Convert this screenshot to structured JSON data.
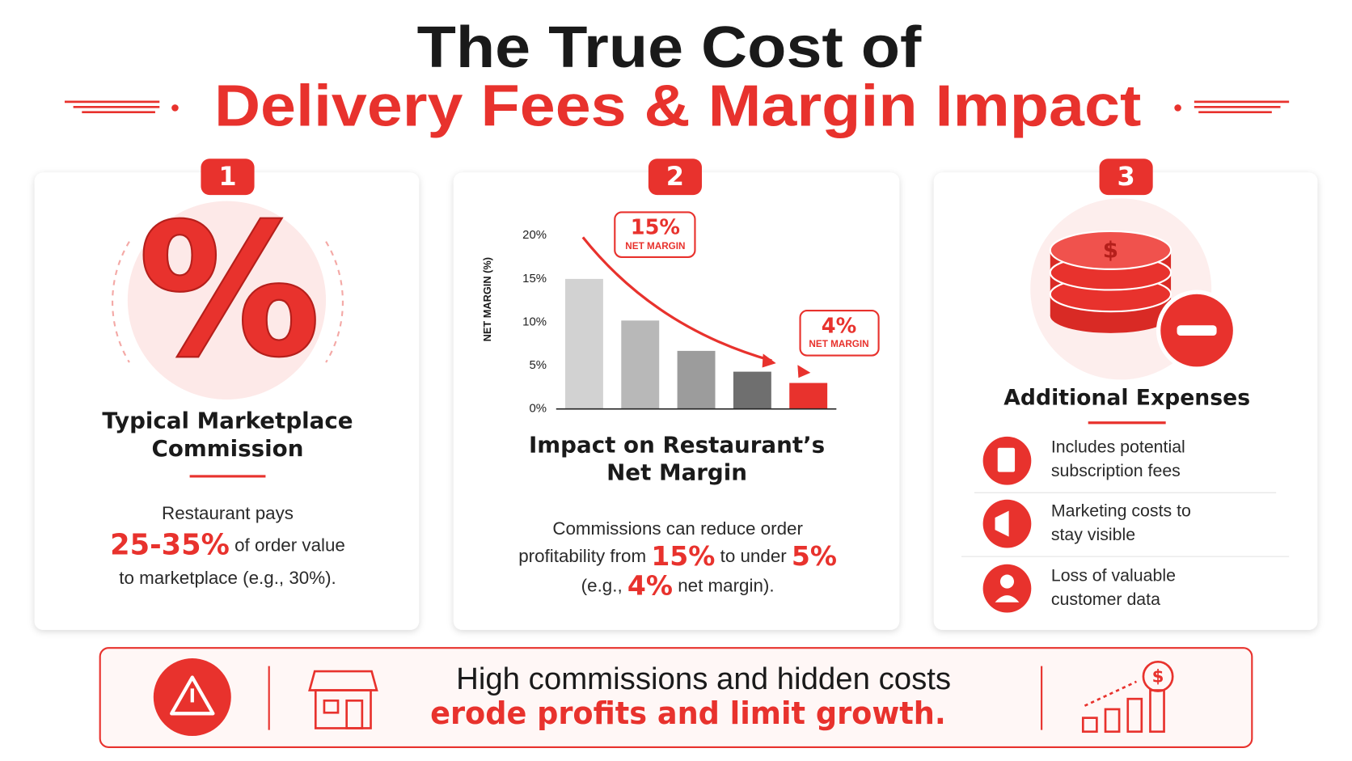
{
  "header": {
    "title_line1": "The True Cost of",
    "title_line2": "Delivery Fees & Margin Impact"
  },
  "cards": [
    {
      "number": "1",
      "icon": "%",
      "title_lines": [
        "Typical Marketplace",
        "Commission"
      ],
      "body": [
        "Restaurant pays",
        "25-35%",
        "of order value",
        "to marketplace (e.g., 30%)."
      ]
    },
    {
      "number": "2",
      "title_lines": [
        "Impact on Restaurant’s",
        "Net Margin"
      ],
      "body": [
        "Commissions can reduce order",
        "profitability from",
        "15%",
        "to under",
        "5%",
        "(e.g.,",
        "4%",
        "net margin)."
      ]
    },
    {
      "number": "3",
      "icon": "$",
      "title": "Additional Expenses",
      "items": [
        [
          "Includes potential",
          "subscription fees"
        ],
        [
          "Marketing costs to",
          "stay visible"
        ],
        [
          "Loss of valuable",
          "customer data"
        ]
      ]
    }
  ],
  "chart_data": {
    "type": "bar",
    "y_label": "NET MARGIN (%)",
    "categories": [
      null,
      null,
      null,
      null,
      null
    ],
    "values": [
      15,
      10.2,
      6.7,
      4.3,
      3
    ],
    "colors": [
      "#d2d2d2",
      "#b8b8b8",
      "#9c9c9c",
      "#6f6f6f",
      "#e8322d"
    ],
    "ylim": [
      0,
      20
    ],
    "yticks": [
      {
        "value": 0,
        "label": "0%"
      },
      {
        "value": 5,
        "label": "5%"
      },
      {
        "value": 10,
        "label": "10%"
      },
      {
        "value": 15,
        "label": "15%"
      },
      {
        "value": 20,
        "label": "20%"
      }
    ],
    "annotations": [
      {
        "text": "15%",
        "label": "NET MARGIN"
      },
      {
        "text": "4%",
        "label": "NET MARGIN"
      }
    ]
  },
  "footer": {
    "line1": "High commissions and hidden costs",
    "line2": "erode profits and limit growth.",
    "icon": "$"
  }
}
